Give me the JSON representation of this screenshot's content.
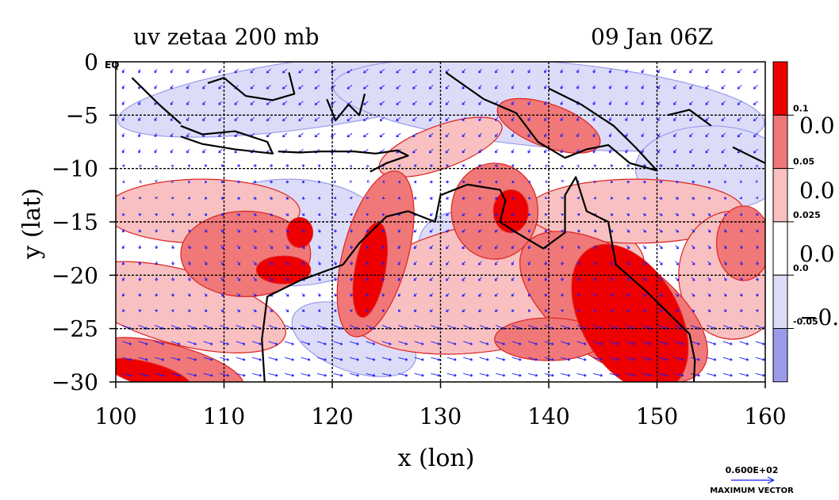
{
  "chart_data": {
    "type": "heatmap",
    "title_left": "uv zetaa 200 mb",
    "title_right": "09 Jan 06Z",
    "xlabel": "x (lon)",
    "ylabel": "y (lat)",
    "xlim": [
      100,
      160
    ],
    "ylim": [
      -30,
      0
    ],
    "x_ticks": [
      "100",
      "110",
      "120",
      "130",
      "140",
      "150",
      "160"
    ],
    "y_ticks": [
      "0",
      "−5",
      "−10",
      "−15",
      "−20",
      "−25",
      "−30"
    ],
    "x_tick_values": [
      100,
      110,
      120,
      130,
      140,
      150,
      160
    ],
    "y_tick_values": [
      0,
      -5,
      -10,
      -15,
      -20,
      -25,
      -30
    ],
    "eq_label": "EQ",
    "grid": true,
    "colorbar": {
      "levels": [
        "0.1",
        "0.05",
        "0.025",
        "0.0",
        "-0.05"
      ],
      "side_labels": [
        "0.0",
        "0.0",
        "0.0",
        "−0."
      ],
      "colors": [
        "#ee0000",
        "#f07878",
        "#f8c0c0",
        "#ffffff",
        "#dcdcf8",
        "#9b9bec"
      ]
    },
    "vector_reference": {
      "value": "0.600E+02",
      "caption": "MAXIMUM VECTOR"
    },
    "colors": {
      "strong_positive": "#ee0000",
      "positive": "#f07878",
      "weak_positive": "#f8c0c0",
      "weak_negative": "#dcdcf8",
      "negative": "#9b9bec",
      "vectors": "#1a1aff",
      "coast": "#000000"
    }
  }
}
